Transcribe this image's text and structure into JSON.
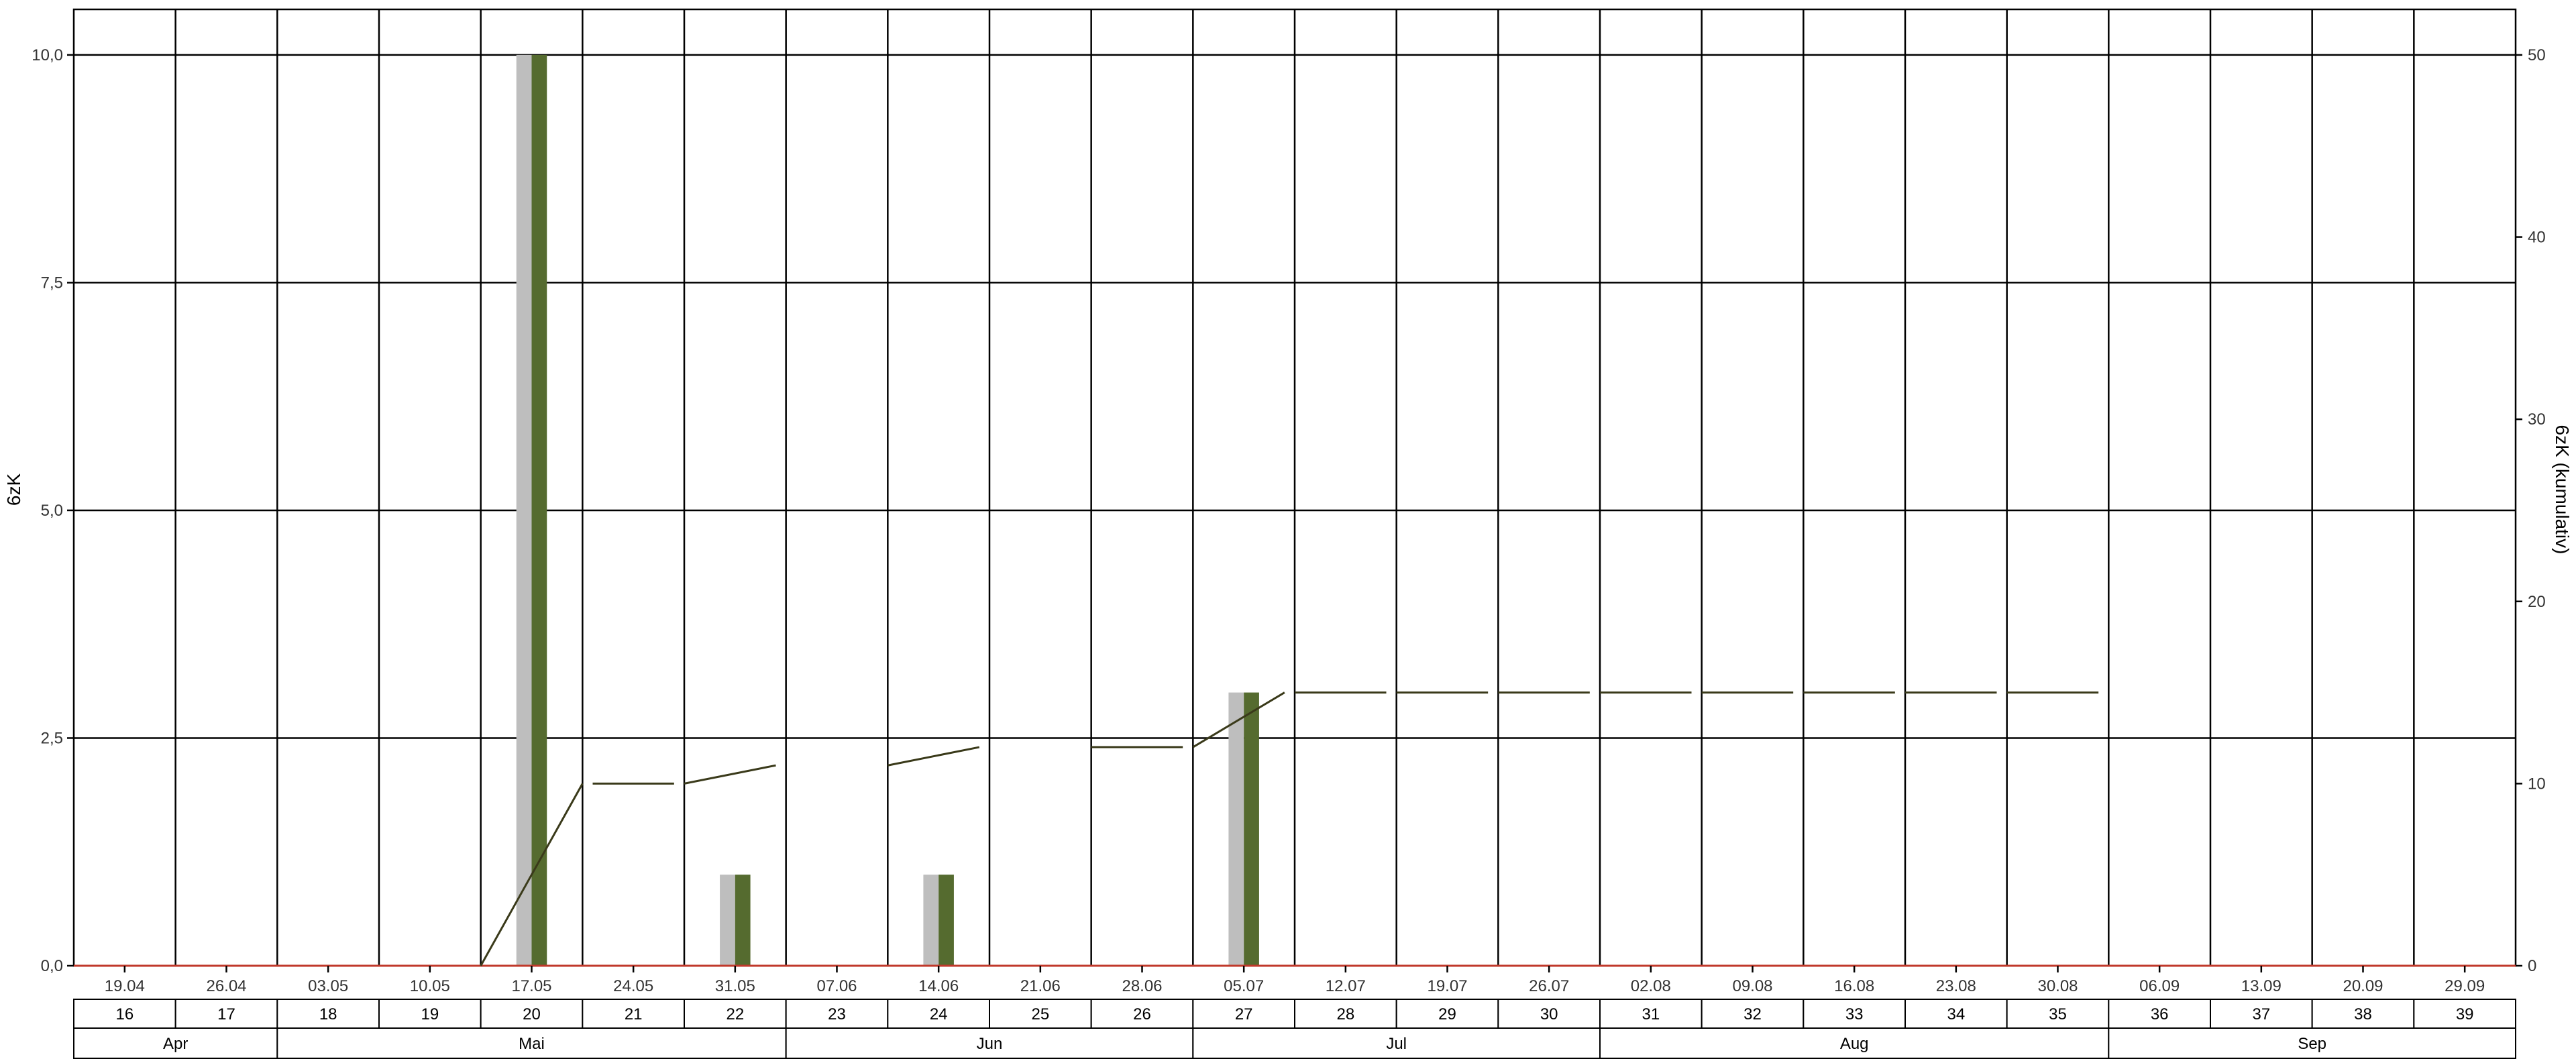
{
  "chart_data": {
    "type": "bar",
    "ylabel_left": "6zK",
    "ylabel_right": "6zK (kumulativ)",
    "ylim_left": [
      0,
      10.5
    ],
    "ylim_right": [
      0,
      52.5
    ],
    "yticks_left": [
      "0,0",
      "2,5",
      "5,0",
      "7,5",
      "10,0"
    ],
    "yticks_left_values": [
      0,
      2.5,
      5,
      7.5,
      10
    ],
    "yticks_right": [
      "0",
      "10",
      "20",
      "30",
      "40",
      "50"
    ],
    "yticks_right_values": [
      0,
      10,
      20,
      30,
      40,
      50
    ],
    "dates": [
      "19.04",
      "26.04",
      "03.05",
      "10.05",
      "17.05",
      "24.05",
      "31.05",
      "07.06",
      "14.06",
      "21.06",
      "28.06",
      "05.07",
      "12.07",
      "19.07",
      "26.07",
      "02.08",
      "09.08",
      "16.08",
      "23.08",
      "30.08",
      "06.09",
      "13.09",
      "20.09",
      "29.09"
    ],
    "weeks": [
      "16",
      "17",
      "18",
      "19",
      "20",
      "21",
      "22",
      "23",
      "24",
      "25",
      "26",
      "27",
      "28",
      "29",
      "30",
      "31",
      "32",
      "33",
      "34",
      "35",
      "36",
      "37",
      "38",
      "39"
    ],
    "months": [
      {
        "label": "Apr",
        "start": 0,
        "span": 2
      },
      {
        "label": "Mai",
        "start": 2,
        "span": 5
      },
      {
        "label": "Jun",
        "start": 7,
        "span": 4
      },
      {
        "label": "Jul",
        "start": 11,
        "span": 4
      },
      {
        "label": "Aug",
        "start": 15,
        "span": 5
      },
      {
        "label": "Sep",
        "start": 20,
        "span": 4
      }
    ],
    "series": [
      {
        "color": "#bebebe",
        "values": [
          null,
          null,
          null,
          null,
          10,
          null,
          1,
          null,
          1,
          null,
          null,
          3,
          null,
          null,
          null,
          null,
          null,
          null,
          null,
          null,
          null,
          null,
          null,
          null
        ]
      },
      {
        "color": "#556b2f",
        "values": [
          null,
          null,
          null,
          null,
          10,
          null,
          1,
          null,
          1,
          null,
          null,
          3,
          null,
          null,
          null,
          null,
          null,
          null,
          null,
          null,
          null,
          null,
          null,
          null
        ]
      }
    ],
    "cumulative_line": {
      "color": "#3a3a1a",
      "segments": [
        [
          [
            4.0,
            0
          ],
          [
            5.0,
            10
          ]
        ],
        [
          [
            5.1,
            10
          ],
          [
            5.9,
            10
          ]
        ],
        [
          [
            6.0,
            10
          ],
          [
            6.9,
            11
          ]
        ],
        [
          [
            8.0,
            11
          ],
          [
            8.9,
            12
          ]
        ],
        [
          [
            10.0,
            12
          ],
          [
            10.9,
            12
          ]
        ],
        [
          [
            11.0,
            12
          ],
          [
            11.9,
            15
          ]
        ],
        [
          [
            12.0,
            15
          ],
          [
            12.9,
            15
          ]
        ],
        [
          [
            13.0,
            15
          ],
          [
            13.9,
            15
          ]
        ],
        [
          [
            14.0,
            15
          ],
          [
            14.9,
            15
          ]
        ],
        [
          [
            15.0,
            15
          ],
          [
            15.9,
            15
          ]
        ],
        [
          [
            16.0,
            15
          ],
          [
            16.9,
            15
          ]
        ],
        [
          [
            17.0,
            15
          ],
          [
            17.9,
            15
          ]
        ],
        [
          [
            18.0,
            15
          ],
          [
            18.9,
            15
          ]
        ],
        [
          [
            19.0,
            15
          ],
          [
            19.9,
            15
          ]
        ]
      ]
    },
    "threshold_line": {
      "value": 0,
      "color": "#c0392b"
    },
    "colors": {
      "frame": "#000000",
      "grid": "#000000",
      "text": "#333333"
    }
  }
}
